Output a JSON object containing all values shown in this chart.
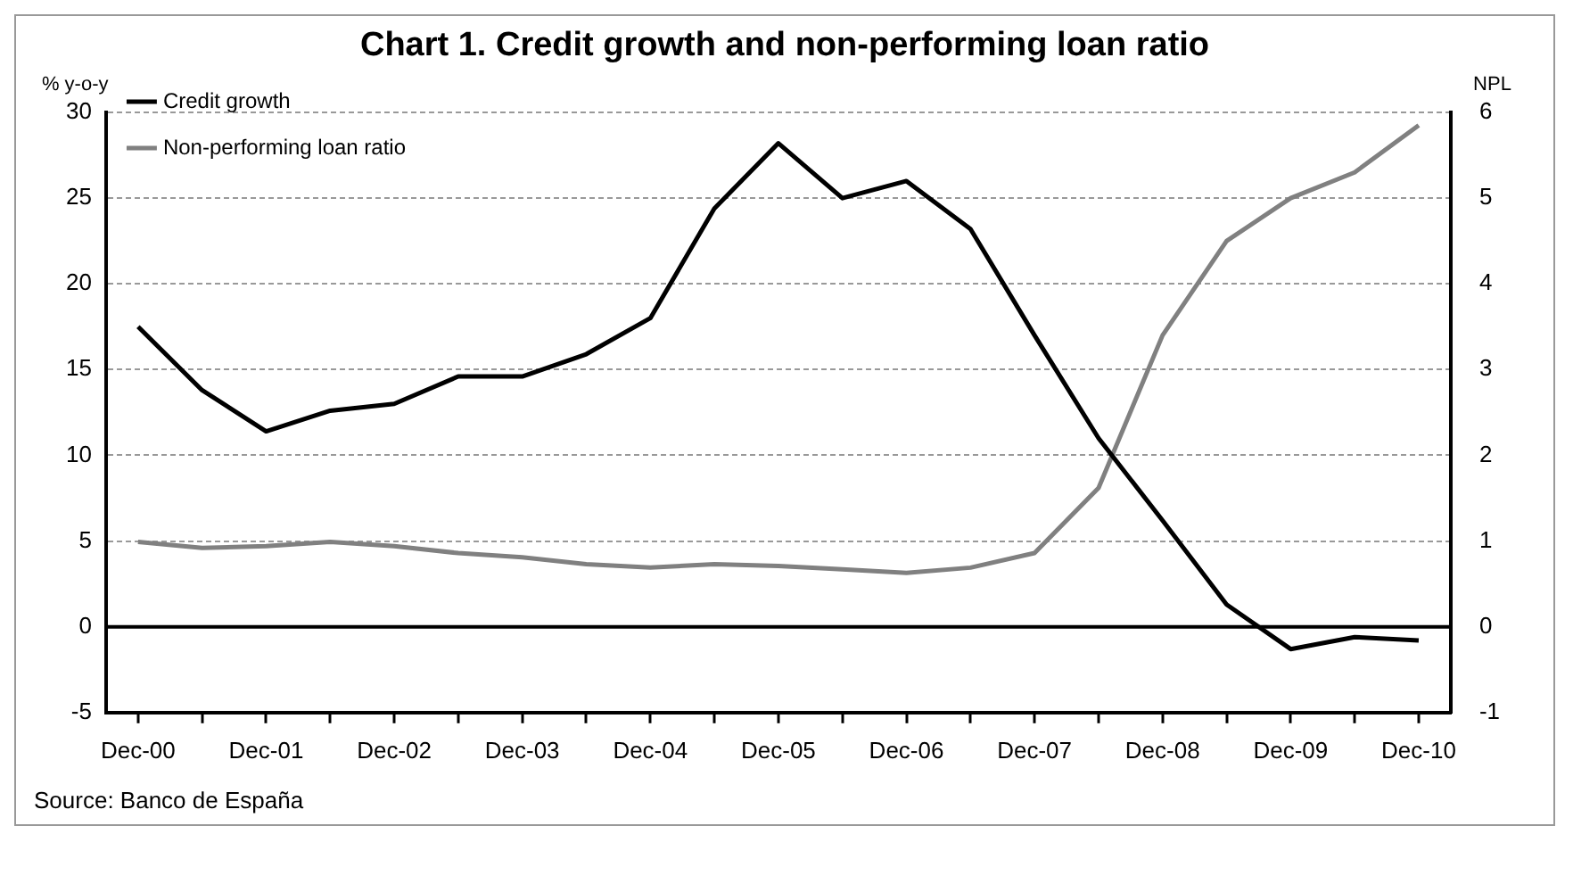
{
  "chart_data": {
    "type": "line",
    "title": "Chart 1. Credit growth and non-performing loan ratio",
    "ylabel": "% y-o-y",
    "y2label": "NPL",
    "categories": [
      "Dec-00",
      null,
      "Dec-01",
      null,
      "Dec-02",
      null,
      "Dec-03",
      null,
      "Dec-04",
      null,
      "Dec-05",
      null,
      "Dec-06",
      null,
      "Dec-07",
      null,
      "Dec-08",
      null,
      "Dec-09",
      null,
      "Dec-10"
    ],
    "series": [
      {
        "name": "Credit growth",
        "color": "#000000",
        "values": [
          17.5,
          13.8,
          11.4,
          12.6,
          13.0,
          14.6,
          14.6,
          15.9,
          18.0,
          24.4,
          28.2,
          25.0,
          26.0,
          23.2,
          17.0,
          11.0,
          6.2,
          1.3,
          -1.3,
          -0.6,
          -0.8
        ]
      },
      {
        "name": "Non-performing loan ratio",
        "color": "#808080",
        "axis": "y2",
        "values": [
          0.99,
          0.92,
          0.94,
          0.99,
          0.94,
          0.86,
          0.81,
          0.73,
          0.69,
          0.73,
          0.71,
          0.67,
          0.63,
          0.69,
          0.86,
          1.62,
          3.4,
          4.5,
          5.0,
          5.3,
          5.85
        ]
      }
    ],
    "ylim": [
      -5,
      30
    ],
    "yticks": [
      -5,
      0,
      5,
      10,
      15,
      20,
      25,
      30
    ],
    "y2lim": [
      -1,
      6
    ],
    "y2ticks": [
      -1,
      0,
      1,
      2,
      3,
      4,
      5,
      6
    ],
    "ref_lines": [
      {
        "axis": "y",
        "value": 0,
        "color": "#000000"
      }
    ],
    "grid": "y",
    "legend": "top left",
    "marker": "none",
    "line_style": "solid",
    "annotations": [
      "Source: Banco de España"
    ]
  }
}
